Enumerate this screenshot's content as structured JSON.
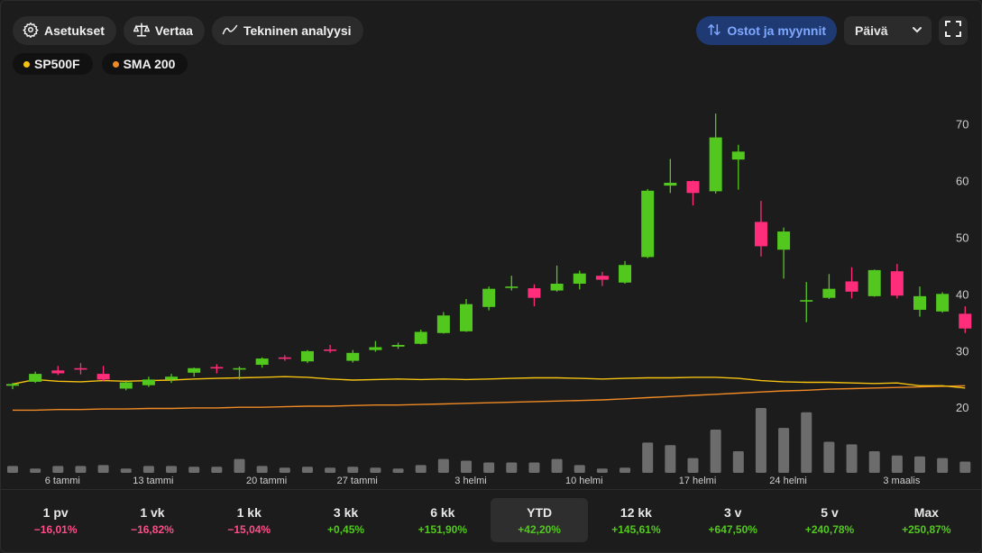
{
  "toolbar": {
    "settings_label": "Asetukset",
    "compare_label": "Vertaa",
    "technical_label": "Tekninen analyysi",
    "trades_label": "Ostot ja myynnit",
    "interval_value": "Päivä"
  },
  "legend": [
    {
      "label": "SP500F",
      "color": "#f5c211"
    },
    {
      "label": "SMA 200",
      "color": "#f08a24"
    }
  ],
  "colors": {
    "up": "#52c81e",
    "down": "#ff2d7a",
    "volume": "#6c6c6c",
    "price_line": "#f5c211",
    "sma_line": "#f08a24"
  },
  "chart_data": {
    "type": "candlestick",
    "y_ticks": [
      "70",
      "60",
      "50",
      "40",
      "30",
      "20"
    ],
    "ylim": [
      14,
      75
    ],
    "x_ticks": [
      {
        "label": "6 tammi",
        "index": 2
      },
      {
        "label": "13 tammi",
        "index": 6
      },
      {
        "label": "20 tammi",
        "index": 11
      },
      {
        "label": "27 tammi",
        "index": 15
      },
      {
        "label": "3 helmi",
        "index": 20
      },
      {
        "label": "10 helmi",
        "index": 25
      },
      {
        "label": "17 helmi",
        "index": 30
      },
      {
        "label": "24 helmi",
        "index": 34
      },
      {
        "label": "3 maalis",
        "index": 39
      }
    ],
    "candles": [
      {
        "o": 23.8,
        "h": 24.3,
        "l": 23.2,
        "c": 24.1
      },
      {
        "o": 24.5,
        "h": 26.3,
        "l": 24.3,
        "c": 25.9
      },
      {
        "o": 26.5,
        "h": 27.3,
        "l": 25.7,
        "c": 26.0
      },
      {
        "o": 26.9,
        "h": 27.8,
        "l": 25.8,
        "c": 26.7
      },
      {
        "o": 25.9,
        "h": 27.3,
        "l": 24.6,
        "c": 24.9
      },
      {
        "o": 23.3,
        "h": 24.8,
        "l": 23.0,
        "c": 24.4
      },
      {
        "o": 23.9,
        "h": 25.4,
        "l": 23.6,
        "c": 24.9
      },
      {
        "o": 24.9,
        "h": 25.9,
        "l": 24.3,
        "c": 25.4
      },
      {
        "o": 26.1,
        "h": 27.0,
        "l": 25.4,
        "c": 26.9
      },
      {
        "o": 27.1,
        "h": 27.6,
        "l": 26.0,
        "c": 26.9
      },
      {
        "o": 26.8,
        "h": 27.2,
        "l": 24.9,
        "c": 26.9
      },
      {
        "o": 27.5,
        "h": 28.8,
        "l": 27.0,
        "c": 28.6
      },
      {
        "o": 28.8,
        "h": 29.2,
        "l": 28.2,
        "c": 28.7
      },
      {
        "o": 28.1,
        "h": 30.1,
        "l": 27.8,
        "c": 29.9
      },
      {
        "o": 30.2,
        "h": 31.0,
        "l": 29.6,
        "c": 30.0
      },
      {
        "o": 28.2,
        "h": 30.1,
        "l": 27.9,
        "c": 29.6
      },
      {
        "o": 30.1,
        "h": 31.7,
        "l": 29.8,
        "c": 30.6
      },
      {
        "o": 30.7,
        "h": 31.4,
        "l": 30.3,
        "c": 31.0
      },
      {
        "o": 31.2,
        "h": 33.7,
        "l": 31.1,
        "c": 33.3
      },
      {
        "o": 33.1,
        "h": 36.8,
        "l": 33.0,
        "c": 36.2
      },
      {
        "o": 33.4,
        "h": 39.1,
        "l": 33.3,
        "c": 38.2
      },
      {
        "o": 37.7,
        "h": 41.3,
        "l": 37.1,
        "c": 40.9
      },
      {
        "o": 41.1,
        "h": 43.2,
        "l": 40.6,
        "c": 41.3
      },
      {
        "o": 41.0,
        "h": 41.7,
        "l": 37.8,
        "c": 39.3
      },
      {
        "o": 40.6,
        "h": 45.0,
        "l": 40.4,
        "c": 41.8
      },
      {
        "o": 41.8,
        "h": 44.1,
        "l": 40.8,
        "c": 43.6
      },
      {
        "o": 43.2,
        "h": 43.9,
        "l": 41.4,
        "c": 42.5
      },
      {
        "o": 42.0,
        "h": 45.8,
        "l": 41.8,
        "c": 45.1
      },
      {
        "o": 46.5,
        "h": 58.5,
        "l": 46.3,
        "c": 58.2
      },
      {
        "o": 59.1,
        "h": 63.8,
        "l": 57.8,
        "c": 59.6
      },
      {
        "o": 59.9,
        "h": 60.0,
        "l": 55.6,
        "c": 57.8
      },
      {
        "o": 58.1,
        "h": 71.8,
        "l": 57.7,
        "c": 67.6
      },
      {
        "o": 63.7,
        "h": 66.3,
        "l": 58.4,
        "c": 65.1
      },
      {
        "o": 52.7,
        "h": 56.4,
        "l": 46.6,
        "c": 48.4
      },
      {
        "o": 47.8,
        "h": 51.7,
        "l": 42.7,
        "c": 51.0
      },
      {
        "o": 38.9,
        "h": 42.1,
        "l": 35.0,
        "c": 38.9
      },
      {
        "o": 39.3,
        "h": 43.5,
        "l": 39.1,
        "c": 40.9
      },
      {
        "o": 42.2,
        "h": 44.7,
        "l": 39.2,
        "c": 40.4
      },
      {
        "o": 39.6,
        "h": 44.3,
        "l": 39.5,
        "c": 44.2
      },
      {
        "o": 44.0,
        "h": 45.3,
        "l": 39.2,
        "c": 39.7
      },
      {
        "o": 37.2,
        "h": 41.3,
        "l": 36.0,
        "c": 39.6
      },
      {
        "o": 36.9,
        "h": 40.3,
        "l": 36.7,
        "c": 40.0
      },
      {
        "o": 36.5,
        "h": 37.8,
        "l": 33.1,
        "c": 33.9
      }
    ],
    "volume": [
      0.08,
      0.05,
      0.08,
      0.08,
      0.09,
      0.05,
      0.08,
      0.08,
      0.07,
      0.07,
      0.16,
      0.08,
      0.06,
      0.07,
      0.06,
      0.07,
      0.06,
      0.05,
      0.09,
      0.16,
      0.14,
      0.12,
      0.12,
      0.12,
      0.16,
      0.09,
      0.05,
      0.06,
      0.35,
      0.32,
      0.17,
      0.5,
      0.25,
      0.75,
      0.52,
      0.7,
      0.36,
      0.33,
      0.25,
      0.2,
      0.19,
      0.17,
      0.13
    ],
    "price_line": [
      24.1,
      24.9,
      24.6,
      24.5,
      24.7,
      24.6,
      24.7,
      24.8,
      25.0,
      25.1,
      25.2,
      25.3,
      25.4,
      25.3,
      25.0,
      24.8,
      24.9,
      25.0,
      24.9,
      25.0,
      24.9,
      25.0,
      25.1,
      25.2,
      25.2,
      25.1,
      25.0,
      25.1,
      25.2,
      25.2,
      25.3,
      25.3,
      25.1,
      24.7,
      24.5,
      24.4,
      24.4,
      24.3,
      24.2,
      24.3,
      23.8,
      23.8,
      23.4
    ],
    "sma_line": [
      19.5,
      19.5,
      19.6,
      19.6,
      19.7,
      19.7,
      19.8,
      19.8,
      19.9,
      19.9,
      20.0,
      20.0,
      20.1,
      20.2,
      20.2,
      20.3,
      20.4,
      20.4,
      20.5,
      20.6,
      20.7,
      20.8,
      20.9,
      21.0,
      21.1,
      21.2,
      21.3,
      21.5,
      21.7,
      21.9,
      22.1,
      22.3,
      22.5,
      22.7,
      22.9,
      23.0,
      23.2,
      23.3,
      23.4,
      23.5,
      23.6,
      23.7,
      23.8
    ]
  },
  "periods": [
    {
      "label": "1 pv",
      "value": "−16,01%",
      "trend": "neg",
      "active": false
    },
    {
      "label": "1 vk",
      "value": "−16,82%",
      "trend": "neg",
      "active": false
    },
    {
      "label": "1 kk",
      "value": "−15,04%",
      "trend": "neg",
      "active": false
    },
    {
      "label": "3 kk",
      "value": "+0,45%",
      "trend": "pos",
      "active": false
    },
    {
      "label": "6 kk",
      "value": "+151,90%",
      "trend": "pos",
      "active": false
    },
    {
      "label": "YTD",
      "value": "+42,20%",
      "trend": "pos",
      "active": true
    },
    {
      "label": "12 kk",
      "value": "+145,61%",
      "trend": "pos",
      "active": false
    },
    {
      "label": "3 v",
      "value": "+647,50%",
      "trend": "pos",
      "active": false
    },
    {
      "label": "5 v",
      "value": "+240,78%",
      "trend": "pos",
      "active": false
    },
    {
      "label": "Max",
      "value": "+250,87%",
      "trend": "pos",
      "active": false
    }
  ]
}
